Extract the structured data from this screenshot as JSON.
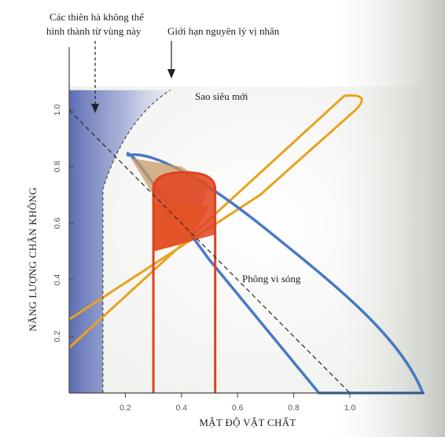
{
  "chart_data": {
    "type": "line",
    "title": "",
    "xlabel": "MẬT ĐỘ VẬT CHẤT",
    "ylabel": "NĂNG LƯỢNG CHÂN KHÔNG",
    "xlim": [
      0,
      1.3
    ],
    "ylim": [
      0,
      1.1
    ],
    "x_ticks": [
      "0.2",
      "0.4",
      "0.6",
      "0.8",
      "1.0"
    ],
    "y_ticks": [
      "0.2",
      "0.4",
      "0.6",
      "0.8",
      "1.0"
    ],
    "grid": false,
    "annotations": {
      "no_galaxies_line1": "Các thiên hà không thể",
      "no_galaxies_line2": "hình thành từ vùng này",
      "lensing_limit": "Giới hạn nguyên lý vị nhân",
      "supernova": "Sao siêu mới",
      "cmb": "Phông vi sóng"
    },
    "regions": [
      {
        "label": "Sao siêu mới",
        "kind": "tilted band",
        "color": "#e8a21d",
        "outline_points": [
          [
            0,
            0.16
          ],
          [
            0.98,
            1.05
          ],
          [
            1.02,
            1.0
          ],
          [
            0.68,
            0.7
          ],
          [
            0,
            0.26
          ]
        ]
      },
      {
        "label": "Phông vi sóng",
        "kind": "descending band",
        "color": "#4a79c4",
        "upper_edge": [
          [
            0.21,
            0.84
          ],
          [
            0.4,
            0.8
          ],
          [
            0.7,
            0.58
          ],
          [
            1.0,
            0.3
          ],
          [
            1.26,
            0.0
          ]
        ],
        "lower_edge": [
          [
            0.24,
            0.82
          ],
          [
            0.5,
            0.47
          ],
          [
            0.89,
            0.0
          ]
        ]
      },
      {
        "label": "",
        "kind": "vertical band",
        "color": "#e0431f",
        "x_range": [
          0.3,
          0.52
        ],
        "y_top": 0.78
      }
    ],
    "reference_lines": [
      {
        "kind": "flat-universe line",
        "style": "dashed",
        "points": [
          [
            0,
            1.0
          ],
          [
            1.0,
            0.0
          ]
        ]
      },
      {
        "kind": "no-galaxy boundary",
        "style": "dashed",
        "points": [
          [
            0.12,
            0
          ],
          [
            0.12,
            0.72
          ],
          [
            0.2,
            0.97
          ],
          [
            0.36,
            1.07
          ]
        ]
      }
    ]
  }
}
